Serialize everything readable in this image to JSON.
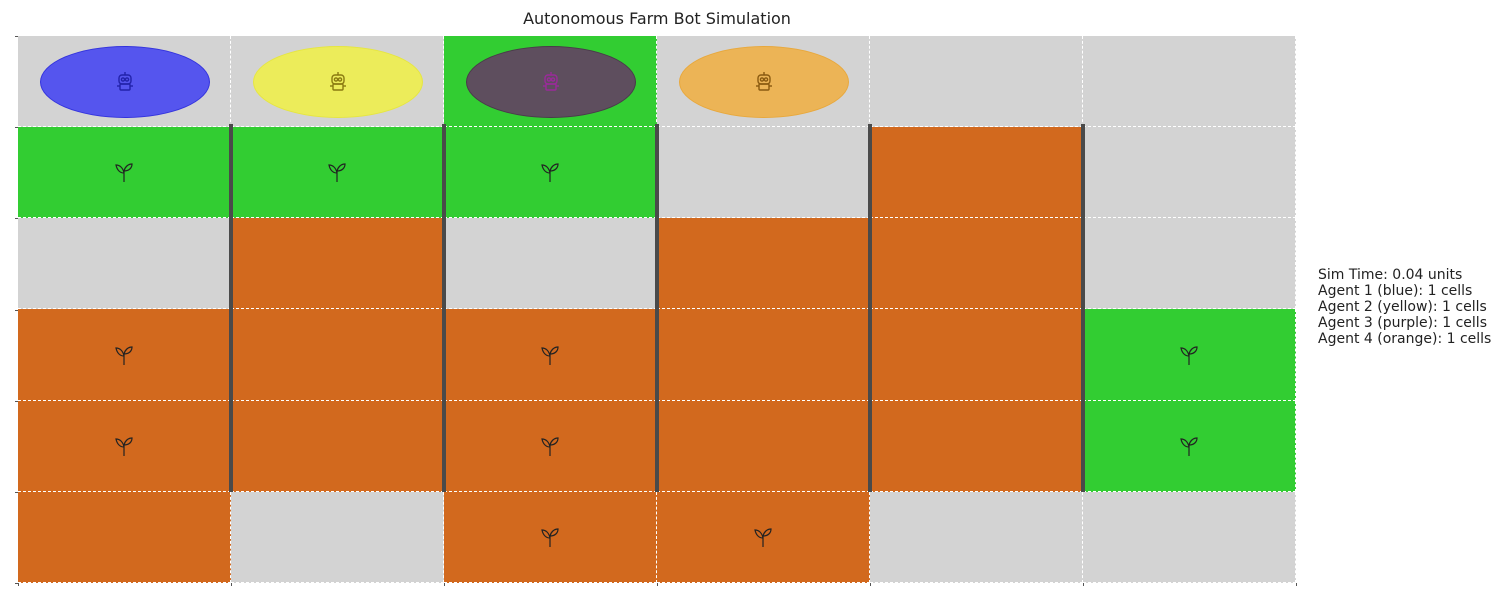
{
  "title": "Autonomous Farm Bot Simulation",
  "colors": {
    "empty": "#d3d3d3",
    "soil": "#d2691e",
    "crop": "#32cd32",
    "divider": "#4a4a4a"
  },
  "grid": {
    "rows": 6,
    "cols": 6,
    "cells": [
      [
        "empty",
        "empty",
        "crop",
        "empty",
        "empty",
        "empty"
      ],
      [
        "crop",
        "crop",
        "crop",
        "empty",
        "soil",
        "empty"
      ],
      [
        "empty",
        "soil",
        "empty",
        "soil",
        "soil",
        "empty"
      ],
      [
        "soil",
        "soil",
        "soil",
        "soil",
        "soil",
        "crop"
      ],
      [
        "soil",
        "soil",
        "soil",
        "soil",
        "soil",
        "crop"
      ],
      [
        "soil",
        "empty",
        "soil",
        "soil",
        "empty",
        "empty"
      ]
    ],
    "plants": [
      [
        false,
        false,
        false,
        false,
        false,
        false
      ],
      [
        true,
        true,
        true,
        false,
        false,
        false
      ],
      [
        false,
        false,
        false,
        false,
        false,
        false
      ],
      [
        true,
        false,
        true,
        false,
        false,
        true
      ],
      [
        true,
        false,
        true,
        false,
        false,
        true
      ],
      [
        false,
        false,
        true,
        true,
        false,
        false
      ]
    ]
  },
  "agents": [
    {
      "id": 1,
      "name": "blue",
      "row": 0,
      "col": 0,
      "fill": "#5555ee",
      "edge": "#3333dd",
      "icon": "robot-icon",
      "icon_color": "#2222aa"
    },
    {
      "id": 2,
      "name": "yellow",
      "row": 0,
      "col": 1,
      "fill": "#ecec5a",
      "edge": "#e6e640",
      "icon": "robot-icon",
      "icon_color": "#8a7a10"
    },
    {
      "id": 3,
      "name": "purple",
      "row": 0,
      "col": 2,
      "fill": "#5e4e5e",
      "edge": "#4a3a4a",
      "icon": "robot-icon",
      "icon_color": "#9a2a9a"
    },
    {
      "id": 4,
      "name": "orange",
      "row": 0,
      "col": 3,
      "fill": "#ecb456",
      "edge": "#e8a83c",
      "icon": "robot-icon",
      "icon_color": "#8a5a10"
    }
  ],
  "status": {
    "sim_time": "Sim Time: 0.04 units",
    "agent_lines": [
      "Agent 1 (blue): 1 cells",
      "Agent 2 (yellow): 1 cells",
      "Agent 3 (purple): 1 cells",
      "Agent 4 (orange): 1 cells"
    ]
  }
}
